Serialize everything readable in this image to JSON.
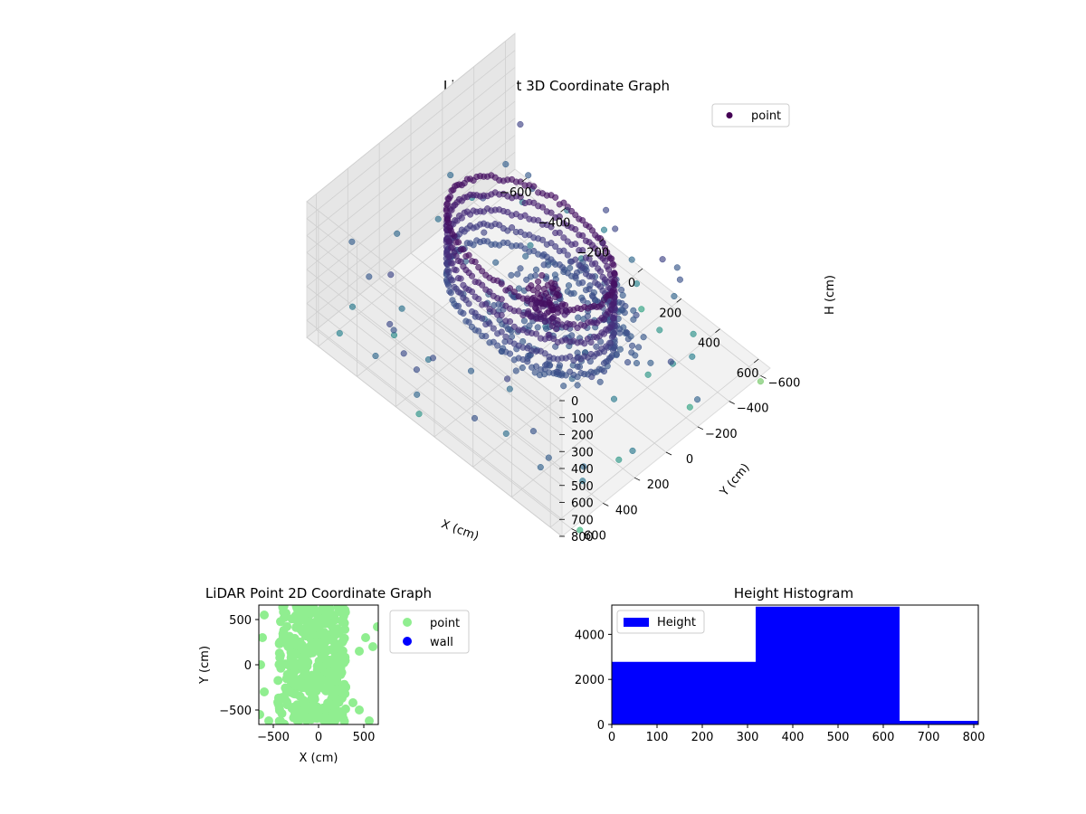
{
  "chart_data": [
    {
      "type": "scatter",
      "projection": "3d",
      "title": "LiDAR Point 3D Coordinate Graph",
      "xlabel": "X (cm)",
      "ylabel": "Y (cm)",
      "zlabel": "H (cm)",
      "xticks": [
        "−600",
        "−400",
        "−200",
        "0",
        "200",
        "400",
        "600"
      ],
      "yticks": [
        "−600",
        "−400",
        "−200",
        "0",
        "200",
        "400",
        "600"
      ],
      "zticks": [
        "0",
        "100",
        "200",
        "300",
        "400",
        "500",
        "600",
        "700",
        "800"
      ],
      "zlim": [
        800,
        0
      ],
      "legend": {
        "position": "upper-right",
        "entries": [
          {
            "label": "point",
            "color": "#440154"
          }
        ]
      },
      "colormap": "viridis",
      "grid": true,
      "series": [
        {
          "name": "point",
          "description_units": "cm",
          "ring": {
            "center_x": 0,
            "center_y": 50,
            "radius_x": 380,
            "radius_y": 260,
            "h_range": [
              120,
              500
            ]
          },
          "floor_blob": {
            "x_range": [
              -200,
              450
            ],
            "y_range": [
              -350,
              300
            ],
            "h": 520
          },
          "scattered_points": [
            [
              -720,
              300,
              560
            ],
            [
              -650,
              100,
              600
            ],
            [
              -600,
              -100,
              620
            ],
            [
              -700,
              -300,
              600
            ],
            [
              -550,
              400,
              540
            ],
            [
              -450,
              -450,
              650
            ],
            [
              -300,
              -550,
              640
            ],
            [
              -150,
              -600,
              660
            ],
            [
              100,
              -500,
              680
            ],
            [
              300,
              -400,
              700
            ],
            [
              450,
              -300,
              690
            ],
            [
              620,
              -200,
              720
            ],
            [
              650,
              200,
              650
            ],
            [
              600,
              450,
              600
            ],
            [
              500,
              600,
              580
            ],
            [
              -300,
              550,
              520
            ],
            [
              -100,
              650,
              500
            ],
            [
              200,
              650,
              520
            ],
            [
              700,
              -550,
              760
            ],
            [
              720,
              620,
              740
            ]
          ]
        }
      ]
    },
    {
      "type": "scatter",
      "title": "LiDAR Point 2D Coordinate Graph",
      "xlabel": "X (cm)",
      "ylabel": "Y (cm)",
      "xlim": [
        -660,
        660
      ],
      "ylim": [
        -660,
        660
      ],
      "xticks": [
        "−500",
        "0",
        "500"
      ],
      "yticks": [
        "−500",
        "0",
        "500"
      ],
      "legend": {
        "position": "outside-right",
        "entries": [
          {
            "label": "point",
            "color": "#90EE90"
          },
          {
            "label": "wall",
            "color": "#0000FF"
          }
        ]
      },
      "series": [
        {
          "name": "point",
          "color": "#90EE90",
          "dense_region": {
            "x_range": [
              -450,
              300
            ],
            "y_range": [
              -660,
              660
            ]
          },
          "outliers": [
            [
              -600,
              550
            ],
            [
              -620,
              300
            ],
            [
              -640,
              0
            ],
            [
              -600,
              -300
            ],
            [
              -650,
              -550
            ],
            [
              450,
              150
            ],
            [
              520,
              300
            ],
            [
              600,
              200
            ],
            [
              650,
              420
            ],
            [
              380,
              -420
            ],
            [
              450,
              -500
            ],
            [
              560,
              -620
            ],
            [
              300,
              -250
            ],
            [
              -550,
              -620
            ]
          ]
        },
        {
          "name": "wall",
          "color": "#0000FF",
          "points": []
        }
      ]
    },
    {
      "type": "bar",
      "title": "Height Histogram",
      "xlim": [
        0,
        810
      ],
      "ylim": [
        0,
        5300
      ],
      "xticks": [
        "0",
        "100",
        "200",
        "300",
        "400",
        "500",
        "600",
        "700",
        "800"
      ],
      "yticks": [
        "0",
        "2000",
        "4000"
      ],
      "legend": {
        "position": "upper-left",
        "entries": [
          {
            "label": "Height",
            "color": "#0000FF"
          }
        ]
      },
      "series": [
        {
          "name": "Height",
          "color": "#0000FF",
          "bins": [
            [
              0,
              318
            ],
            [
              318,
              636
            ],
            [
              636,
              810
            ]
          ],
          "values": [
            2780,
            5230,
            160
          ]
        }
      ]
    }
  ]
}
